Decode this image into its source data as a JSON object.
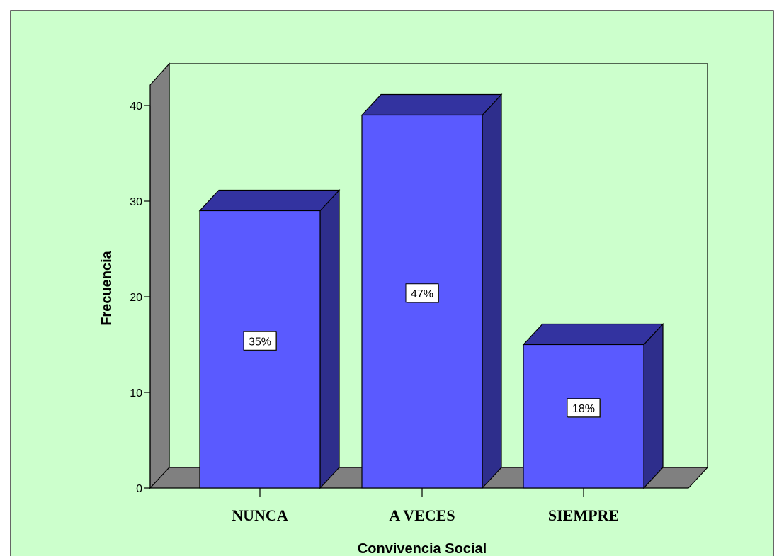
{
  "chart_data": {
    "type": "bar",
    "categories": [
      "NUNCA",
      "A VECES",
      "SIEMPRE"
    ],
    "values": [
      29,
      39,
      15
    ],
    "data_labels": [
      "35%",
      "47%",
      "18%"
    ],
    "xlabel": "Convivencia Social",
    "ylabel": "Frecuencia",
    "ylim": [
      0,
      40
    ],
    "yticks": [
      0,
      10,
      20,
      30,
      40
    ],
    "grid": false,
    "three_d": true,
    "colors": {
      "background": "#ccffcc",
      "bar_front": "#5a5aff",
      "bar_top": "#3333a0",
      "bar_side": "#2e2e8c",
      "wall": "#808080",
      "floor": "#808080",
      "label_box": "#ffffff"
    }
  }
}
